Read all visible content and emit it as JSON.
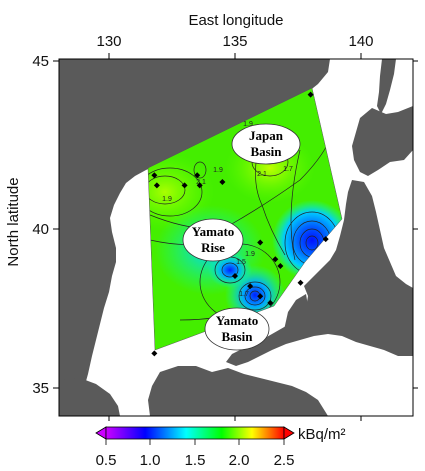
{
  "map": {
    "x_axis_title": "East longitude",
    "y_axis_title": "North latitude",
    "lon_ticks": [
      "130",
      "135",
      "140"
    ],
    "lat_ticks": [
      "45",
      "40",
      "35"
    ],
    "lon_range": [
      128,
      142
    ],
    "lat_range": [
      34,
      45
    ],
    "land_color": "#5a5a5a",
    "sea_color": "#ffffff"
  },
  "regions": [
    {
      "id": "japan-basin",
      "lines": [
        "Japan",
        "Basin"
      ]
    },
    {
      "id": "yamato-rise",
      "lines": [
        "Yamato",
        "Rise"
      ]
    },
    {
      "id": "yamato-basin",
      "lines": [
        "Yamato",
        "Basin"
      ]
    }
  ],
  "stations": [
    {
      "lon": 138.0,
      "lat": 44.0
    },
    {
      "lon": 131.8,
      "lat": 41.6
    },
    {
      "lon": 131.9,
      "lat": 41.3
    },
    {
      "lon": 133.0,
      "lat": 41.3
    },
    {
      "lon": 133.5,
      "lat": 41.6
    },
    {
      "lon": 133.6,
      "lat": 41.3
    },
    {
      "lon": 134.5,
      "lat": 41.4
    },
    {
      "lon": 136.0,
      "lat": 39.6
    },
    {
      "lon": 136.6,
      "lat": 39.1
    },
    {
      "lon": 136.8,
      "lat": 38.9
    },
    {
      "lon": 137.6,
      "lat": 38.4
    },
    {
      "lon": 138.6,
      "lat": 39.7
    },
    {
      "lon": 135.0,
      "lat": 38.6
    },
    {
      "lon": 135.6,
      "lat": 38.3
    },
    {
      "lon": 136.0,
      "lat": 38.0
    },
    {
      "lon": 136.4,
      "lat": 37.8
    },
    {
      "lon": 131.8,
      "lat": 36.3
    }
  ],
  "contour_labels": [
    "1.9",
    "2.1",
    "1.9",
    "2.1",
    "1.9",
    "1.7",
    "1.5",
    "1.7",
    "1.9"
  ],
  "colorbar": {
    "unit": "kBq/m²",
    "tick_labels": [
      "0.5",
      "1.0",
      "1.5",
      "2.0",
      "2.5"
    ],
    "range": [
      0.5,
      2.5
    ],
    "colors": [
      "#cc00ff",
      "#0000ff",
      "#00ffff",
      "#00ff00",
      "#ffff00",
      "#ff0000"
    ]
  }
}
